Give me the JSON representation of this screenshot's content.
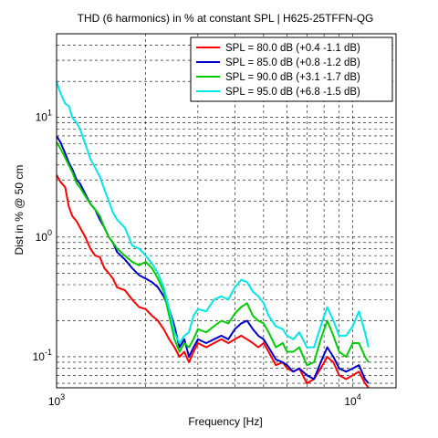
{
  "chart_data": {
    "type": "line",
    "title": "THD (6 harmonics) in % at constant SPL | H625-25TFFN-QG",
    "xlabel": "Frequency [Hz]",
    "ylabel": "Dist in % @ 50 cm",
    "xscale": "log",
    "yscale": "log",
    "xlim": [
      1000,
      14000
    ],
    "ylim": [
      0.055,
      50
    ],
    "x_tick_labels": [
      "10^3",
      "10^4"
    ],
    "y_tick_labels": [
      "10^-1",
      "10^0",
      "10^1"
    ],
    "grid": "dashed",
    "legend_position": "top-right",
    "series": [
      {
        "name": "SPL = 80.0 dB (+0.4 -1.1 dB)",
        "color": "#ff0000",
        "x": [
          1000,
          1030,
          1070,
          1100,
          1130,
          1170,
          1200,
          1250,
          1300,
          1350,
          1400,
          1450,
          1500,
          1550,
          1600,
          1700,
          1800,
          1900,
          2000,
          2100,
          2200,
          2300,
          2400,
          2500,
          2600,
          2700,
          2800,
          2900,
          3000,
          3200,
          3400,
          3600,
          3800,
          4000,
          4200,
          4400,
          4600,
          4800,
          5000,
          5200,
          5500,
          5800,
          6000,
          6300,
          6600,
          7000,
          7400,
          7800,
          8200,
          8600,
          9000,
          9500,
          10000,
          10500,
          11000,
          11300
        ],
        "y": [
          3.3,
          2.9,
          2.6,
          1.8,
          1.5,
          1.35,
          1.2,
          1.0,
          0.8,
          0.7,
          0.68,
          0.55,
          0.5,
          0.45,
          0.38,
          0.36,
          0.3,
          0.26,
          0.25,
          0.22,
          0.2,
          0.17,
          0.14,
          0.12,
          0.1,
          0.11,
          0.09,
          0.11,
          0.13,
          0.12,
          0.13,
          0.14,
          0.13,
          0.14,
          0.15,
          0.14,
          0.13,
          0.12,
          0.13,
          0.11,
          0.085,
          0.09,
          0.08,
          0.075,
          0.08,
          0.06,
          0.065,
          0.08,
          0.1,
          0.09,
          0.07,
          0.065,
          0.07,
          0.075,
          0.06,
          0.055
        ]
      },
      {
        "name": "SPL = 85.0 dB (+0.8 -1.2 dB)",
        "color": "#0000cc",
        "x": [
          1000,
          1030,
          1070,
          1100,
          1130,
          1170,
          1200,
          1250,
          1300,
          1350,
          1400,
          1450,
          1500,
          1550,
          1600,
          1700,
          1800,
          1900,
          2000,
          2100,
          2200,
          2300,
          2400,
          2500,
          2600,
          2700,
          2800,
          2900,
          3000,
          3200,
          3400,
          3600,
          3800,
          4000,
          4200,
          4400,
          4600,
          4800,
          5000,
          5200,
          5500,
          5800,
          6000,
          6300,
          6600,
          7000,
          7400,
          7800,
          8200,
          8600,
          9000,
          9500,
          10000,
          10500,
          11000,
          11300
        ],
        "y": [
          7.0,
          6.2,
          5.0,
          4.2,
          3.7,
          3.0,
          2.8,
          2.3,
          1.9,
          1.7,
          1.4,
          1.2,
          1.0,
          0.9,
          0.75,
          0.65,
          0.55,
          0.48,
          0.45,
          0.42,
          0.38,
          0.32,
          0.25,
          0.18,
          0.12,
          0.14,
          0.1,
          0.12,
          0.14,
          0.13,
          0.14,
          0.15,
          0.14,
          0.17,
          0.19,
          0.2,
          0.17,
          0.15,
          0.14,
          0.12,
          0.095,
          0.09,
          0.085,
          0.075,
          0.08,
          0.07,
          0.065,
          0.09,
          0.12,
          0.1,
          0.08,
          0.075,
          0.08,
          0.085,
          0.065,
          0.06
        ]
      },
      {
        "name": "SPL = 90.0 dB (+3.1 -1.7 dB)",
        "color": "#00cc00",
        "x": [
          1000,
          1030,
          1070,
          1100,
          1130,
          1170,
          1200,
          1250,
          1300,
          1350,
          1400,
          1450,
          1500,
          1550,
          1600,
          1700,
          1800,
          1900,
          2000,
          2100,
          2200,
          2300,
          2400,
          2500,
          2600,
          2700,
          2800,
          2900,
          3000,
          3200,
          3400,
          3600,
          3800,
          4000,
          4200,
          4400,
          4600,
          4800,
          5000,
          5200,
          5500,
          5800,
          6000,
          6300,
          6600,
          7000,
          7400,
          7800,
          8200,
          8600,
          9000,
          9500,
          10000,
          10500,
          11000,
          11300
        ],
        "y": [
          6.2,
          5.5,
          4.6,
          4.0,
          3.5,
          2.8,
          2.6,
          2.2,
          1.9,
          1.7,
          1.5,
          1.2,
          1.0,
          0.9,
          0.8,
          0.7,
          0.62,
          0.58,
          0.62,
          0.55,
          0.45,
          0.35,
          0.22,
          0.14,
          0.11,
          0.13,
          0.12,
          0.14,
          0.17,
          0.16,
          0.18,
          0.2,
          0.19,
          0.23,
          0.26,
          0.28,
          0.22,
          0.2,
          0.19,
          0.16,
          0.12,
          0.13,
          0.11,
          0.11,
          0.12,
          0.085,
          0.09,
          0.14,
          0.2,
          0.15,
          0.11,
          0.1,
          0.13,
          0.13,
          0.1,
          0.09
        ]
      },
      {
        "name": "SPL = 95.0 dB (+6.8 -1.5 dB)",
        "color": "#00e5e5",
        "x": [
          1000,
          1030,
          1070,
          1100,
          1130,
          1170,
          1200,
          1250,
          1300,
          1350,
          1400,
          1450,
          1500,
          1550,
          1600,
          1700,
          1800,
          1900,
          2000,
          2100,
          2200,
          2300,
          2400,
          2500,
          2600,
          2700,
          2800,
          2900,
          3000,
          3200,
          3400,
          3600,
          3800,
          4000,
          4200,
          4400,
          4600,
          4800,
          5000,
          5200,
          5500,
          5800,
          6000,
          6300,
          6600,
          7000,
          7400,
          7800,
          8200,
          8600,
          9000,
          9500,
          10000,
          10500,
          11000,
          11300
        ],
        "y": [
          20.0,
          16.0,
          13.0,
          12.5,
          10.0,
          9.0,
          8.0,
          6.0,
          4.5,
          3.8,
          3.2,
          2.5,
          2.0,
          1.6,
          1.4,
          1.2,
          0.85,
          0.8,
          0.7,
          0.6,
          0.5,
          0.38,
          0.25,
          0.16,
          0.13,
          0.15,
          0.16,
          0.22,
          0.25,
          0.24,
          0.3,
          0.32,
          0.3,
          0.38,
          0.44,
          0.42,
          0.35,
          0.32,
          0.28,
          0.22,
          0.18,
          0.17,
          0.15,
          0.14,
          0.16,
          0.12,
          0.12,
          0.18,
          0.26,
          0.2,
          0.15,
          0.15,
          0.18,
          0.24,
          0.16,
          0.12
        ]
      }
    ]
  }
}
